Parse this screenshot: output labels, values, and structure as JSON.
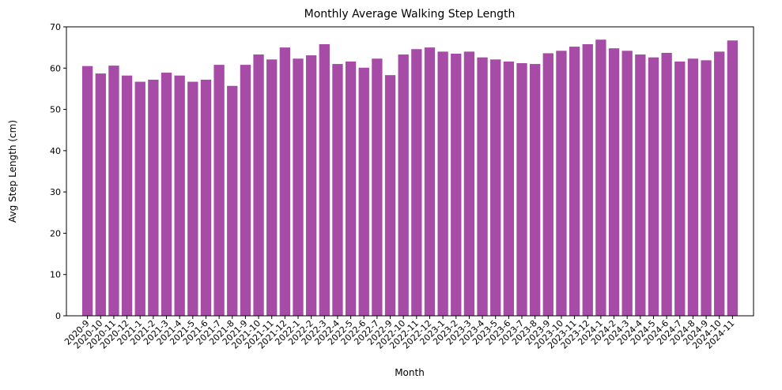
{
  "chart_data": {
    "type": "bar",
    "title": "Monthly Average Walking Step Length",
    "x_label": "Month",
    "y_label": "Avg Step Length (cm)",
    "categories": [
      "2020-9",
      "2020-10",
      "2020-11",
      "2020-12",
      "2021-1",
      "2021-2",
      "2021-3",
      "2021-4",
      "2021-5",
      "2021-6",
      "2021-7",
      "2021-8",
      "2021-9",
      "2021-10",
      "2021-11",
      "2021-12",
      "2022-1",
      "2022-2",
      "2022-3",
      "2022-4",
      "2022-5",
      "2022-6",
      "2022-7",
      "2022-9",
      "2022-10",
      "2022-11",
      "2022-12",
      "2023-1",
      "2023-2",
      "2023-3",
      "2023-4",
      "2023-5",
      "2023-6",
      "2023-7",
      "2023-8",
      "2023-9",
      "2023-10",
      "2023-11",
      "2023-12",
      "2024-1",
      "2024-2",
      "2024-3",
      "2024-4",
      "2024-5",
      "2024-6",
      "2024-7",
      "2024-8",
      "2024-9",
      "2024-10",
      "2024-11"
    ],
    "values": [
      60.5,
      58.7,
      60.6,
      58.2,
      56.7,
      57.2,
      58.9,
      58.2,
      56.7,
      57.2,
      60.8,
      55.7,
      60.8,
      63.3,
      62.1,
      65.0,
      62.3,
      63.1,
      65.8,
      61.0,
      61.6,
      60.1,
      62.3,
      58.3,
      63.3,
      64.6,
      65.0,
      64.0,
      63.5,
      64.0,
      62.6,
      62.1,
      61.6,
      61.2,
      61.0,
      63.6,
      64.2,
      65.2,
      65.8,
      66.9,
      64.8,
      64.2,
      63.3,
      62.6,
      63.7,
      61.6,
      62.3,
      61.9,
      64.0,
      66.7
    ],
    "color": "#a64ca6",
    "ylim": [
      0,
      70
    ],
    "yticks": [
      0,
      10,
      20,
      30,
      40,
      50,
      60,
      70
    ]
  }
}
